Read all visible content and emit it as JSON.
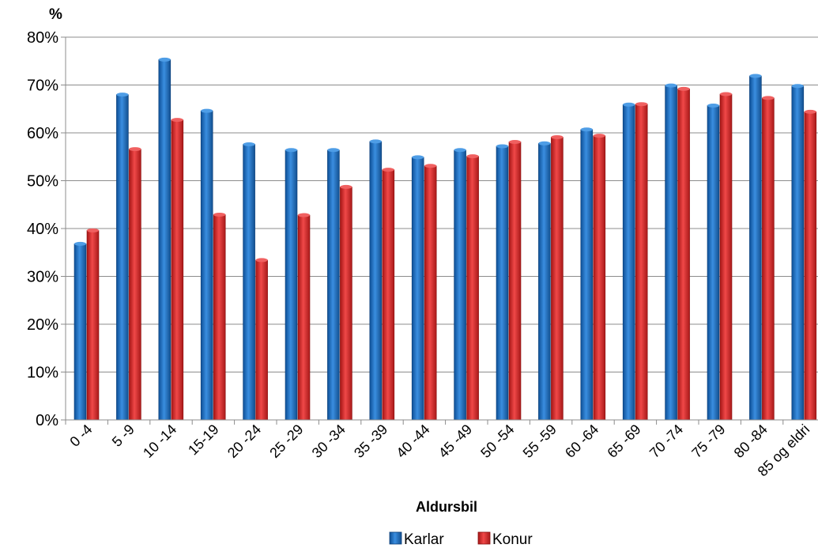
{
  "chart_data": {
    "type": "bar",
    "y_unit_label": "%",
    "xlabel": "Aldursbil",
    "ylim": [
      0,
      80
    ],
    "y_ticks": [
      "0%",
      "10%",
      "20%",
      "30%",
      "40%",
      "50%",
      "60%",
      "70%",
      "80%"
    ],
    "grid": true,
    "legend_position": "bottom",
    "categories": [
      "0 -4",
      "5 -9",
      "10 -14",
      "15-19",
      "20 -24",
      "25 -29",
      "30 -34",
      "35 -39",
      "40 -44",
      "45 -49",
      "50 -54",
      "55 -59",
      "60 -64",
      "65 -69",
      "70 -74",
      "75 -79",
      "80 -84",
      "85 og eldri"
    ],
    "series": [
      {
        "name": "Karlar",
        "color": "#1f6fc0",
        "values": [
          36.8,
          68.0,
          75.3,
          64.6,
          57.6,
          56.4,
          56.4,
          58.2,
          54.9,
          56.4,
          57.2,
          57.8,
          60.7,
          65.9,
          69.9,
          65.7,
          71.9,
          69.8
        ]
      },
      {
        "name": "Konur",
        "color": "#e02b2b",
        "values": [
          39.6,
          56.6,
          62.7,
          42.9,
          33.4,
          42.8,
          48.7,
          52.3,
          53.1,
          55.1,
          58.1,
          59.1,
          59.4,
          66.0,
          69.2,
          68.1,
          67.3,
          64.4
        ]
      }
    ]
  }
}
